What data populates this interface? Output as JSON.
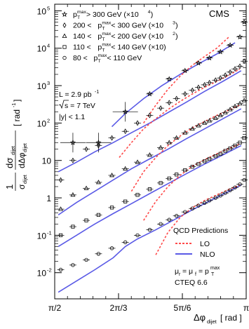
{
  "chart_data": {
    "type": "scatter",
    "experiment_label": "CMS",
    "ylabel": "1/σ_dijet dσ_dijet/dΔφ_dijet [rad⁻¹]",
    "xlabel": "Δφ_dijet [rad]",
    "ylabel_parts": {
      "main": "dσ",
      "main_sub": "dijet",
      "denom": "dΔφ",
      "denom_sub": "dijet",
      "pre": "1",
      "pre_den": "σ",
      "pre_den_sub": "dijet",
      "unit": "[ rad",
      "unit_sup": "-1",
      "unit_close": "]"
    },
    "xlabel_parts": {
      "main": "Δφ",
      "sub": "dijet",
      "unit": "[ rad ]"
    },
    "x_ticks": [
      {
        "value": 1.5708,
        "label": "π/2"
      },
      {
        "value": 2.0944,
        "label": "2π/3"
      },
      {
        "value": 2.618,
        "label": "5π/6"
      },
      {
        "value": 3.1416,
        "label": "π"
      }
    ],
    "y_ticks": [
      {
        "value": 0.01,
        "base": "10",
        "exp": "-2"
      },
      {
        "value": 0.1,
        "base": "10",
        "exp": "-1"
      },
      {
        "value": 1,
        "base": "1",
        "exp": ""
      },
      {
        "value": 10,
        "base": "10",
        "exp": ""
      },
      {
        "value": 100,
        "base": "10",
        "exp": "2"
      },
      {
        "value": 1000,
        "base": "10",
        "exp": "3"
      },
      {
        "value": 10000,
        "base": "10",
        "exp": "4"
      },
      {
        "value": 100000,
        "base": "10",
        "exp": "5"
      }
    ],
    "xlim": [
      1.5708,
      3.1416
    ],
    "ylim": [
      0.002,
      150000
    ],
    "y_scale": "log",
    "legend": [
      {
        "marker": "star",
        "label": "p_T^max > 300 GeV (×10^4)",
        "parts": [
          "p",
          "T",
          "max",
          " > 300 GeV (×10",
          "4",
          ")"
        ],
        "prefix": ""
      },
      {
        "marker": "diamond",
        "label": "200 < p_T^max < 300 GeV (×10^3)",
        "parts": [
          "p",
          "T",
          "max",
          " < 300 GeV (×10",
          "3",
          ")"
        ],
        "prefix": "200 < "
      },
      {
        "marker": "triangle",
        "label": "140 < p_T^max < 200 GeV (×10^2)",
        "parts": [
          "p",
          "T",
          "max",
          " < 200 GeV (×10",
          "2",
          ")"
        ],
        "prefix": "140 < "
      },
      {
        "marker": "square",
        "label": "110 < p_T^max < 140 GeV (×10)",
        "parts": [
          "p",
          "T",
          "max",
          " < 140 GeV (×10)",
          "",
          ""
        ],
        "prefix": "110 < "
      },
      {
        "marker": "circle",
        "label": "80 < p_T^max < 110 GeV",
        "parts": [
          "p",
          "T",
          "max",
          " < 110 GeV",
          "",
          ""
        ],
        "prefix": "80 < "
      }
    ],
    "info": {
      "lumi": "L = 2.9 pb",
      "lumi_sup": "-1",
      "sqrt_s": "s = 7 TeV",
      "rapidity": "|y| < 1.1"
    },
    "predictions": {
      "title": "QCD Predictions",
      "lo_label": "LO",
      "nlo_label": "NLO",
      "scale_label": "μ",
      "scale_text": "μ_r = μ_f = p_T^max",
      "pdf": "CTEQ 6.6"
    },
    "colors": {
      "lo": "#ff4a4a",
      "nlo": "#5a5ae6",
      "data": "#000000"
    },
    "x_bins": [
      1.62,
      1.72,
      1.83,
      1.93,
      2.04,
      2.15,
      2.25,
      2.35,
      2.44,
      2.51,
      2.57,
      2.64,
      2.7,
      2.75,
      2.8,
      2.84,
      2.89,
      2.93,
      2.97,
      3.01,
      3.05,
      3.09,
      3.125
    ],
    "series": [
      {
        "name": "p_T^max > 300 GeV (×10^4)",
        "marker": "star",
        "x": [
          1.72,
          1.93,
          2.15,
          2.35,
          2.51,
          2.64,
          2.75,
          2.84,
          2.93,
          3.01,
          3.09,
          3.125
        ],
        "y": [
          30,
          30,
          200,
          600,
          1500,
          2500,
          4000,
          5500,
          8000,
          12000,
          20000,
          50000
        ],
        "nlo_x": [
          2.04,
          2.15,
          2.3,
          2.45,
          2.6,
          2.75,
          2.9,
          3.05
        ],
        "nlo_y": [
          80,
          180,
          450,
          1000,
          2000,
          3800,
          7000,
          14000
        ],
        "lo_x": [
          2.3,
          2.4,
          2.5,
          2.6,
          2.7,
          2.8,
          2.9,
          3.0
        ],
        "lo_y": [
          100,
          300,
          800,
          1800,
          3500,
          6000,
          10000,
          20000
        ]
      },
      {
        "name": "200 < p_T^max < 300 GeV (×10^3)",
        "marker": "diamond",
        "x": [
          1.62,
          1.72,
          1.83,
          1.93,
          2.04,
          2.15,
          2.25,
          2.35,
          2.44,
          2.51,
          2.57,
          2.64,
          2.7,
          2.75,
          2.8,
          2.84,
          2.89,
          2.93,
          2.97,
          3.01,
          3.05,
          3.09,
          3.125
        ],
        "y": [
          3,
          10,
          20,
          25,
          40,
          60,
          100,
          160,
          250,
          350,
          450,
          600,
          750,
          900,
          1050,
          1200,
          1400,
          1600,
          1900,
          2300,
          2800,
          3300,
          4500
        ],
        "nlo_x": [
          1.6,
          1.75,
          1.9,
          2.05,
          2.2,
          2.35,
          2.5,
          2.65,
          2.8,
          2.95,
          3.1
        ],
        "nlo_y": [
          5,
          9,
          17,
          30,
          55,
          100,
          190,
          360,
          700,
          1300,
          2500
        ],
        "lo_x": [
          2.1,
          2.2,
          2.3,
          2.4,
          2.5,
          2.6,
          2.7,
          2.8,
          2.9,
          3.0,
          3.09
        ],
        "lo_y": [
          12,
          30,
          70,
          130,
          230,
          380,
          600,
          900,
          1300,
          1900,
          2800
        ]
      },
      {
        "name": "140 < p_T^max < 200 GeV (×10^2)",
        "marker": "triangle",
        "x": [
          1.62,
          1.72,
          1.83,
          1.93,
          2.04,
          2.15,
          2.25,
          2.35,
          2.44,
          2.51,
          2.57,
          2.64,
          2.7,
          2.75,
          2.8,
          2.84,
          2.89,
          2.93,
          2.97,
          3.01,
          3.05,
          3.09,
          3.125
        ],
        "y": [
          0.5,
          1.2,
          1.8,
          2.6,
          4,
          6,
          9,
          14,
          22,
          30,
          40,
          55,
          70,
          85,
          100,
          115,
          135,
          160,
          190,
          230,
          280,
          330,
          400
        ],
        "nlo_x": [
          1.6,
          1.75,
          1.9,
          2.05,
          2.2,
          2.35,
          2.5,
          2.65,
          2.8,
          2.95,
          3.1
        ],
        "nlo_y": [
          0.35,
          0.75,
          1.5,
          3,
          6,
          11,
          20,
          38,
          70,
          130,
          240
        ],
        "lo_x": [
          2.2,
          2.3,
          2.4,
          2.5,
          2.6,
          2.7,
          2.8,
          2.9,
          3.0,
          3.09
        ],
        "lo_y": [
          1.5,
          5,
          12,
          25,
          45,
          75,
          110,
          160,
          220,
          300
        ]
      },
      {
        "name": "110 < p_T^max < 140 GeV (×10)",
        "marker": "square",
        "x": [
          1.62,
          1.72,
          1.83,
          1.93,
          2.04,
          2.15,
          2.25,
          2.35,
          2.44,
          2.51,
          2.57,
          2.64,
          2.7,
          2.75,
          2.8,
          2.84,
          2.89,
          2.93,
          2.97,
          3.01,
          3.05,
          3.09,
          3.125
        ],
        "y": [
          0.1,
          0.17,
          0.25,
          0.35,
          0.55,
          0.8,
          1.2,
          1.7,
          2.5,
          3.3,
          4.2,
          5.5,
          6.8,
          8,
          9.5,
          11,
          13,
          15,
          18,
          21,
          25,
          30,
          40
        ],
        "nlo_x": [
          1.6,
          1.75,
          1.9,
          2.05,
          2.2,
          2.35,
          2.5,
          2.65,
          2.8,
          2.95,
          3.1
        ],
        "nlo_y": [
          0.05,
          0.1,
          0.2,
          0.38,
          0.7,
          1.3,
          2.4,
          4.4,
          8,
          14,
          25
        ],
        "lo_x": [
          2.3,
          2.4,
          2.5,
          2.6,
          2.7,
          2.8,
          2.9,
          3.0,
          3.09
        ],
        "lo_y": [
          0.25,
          0.8,
          2,
          4,
          7,
          10.5,
          15,
          21,
          28
        ]
      },
      {
        "name": "80 < p_T^max < 110 GeV",
        "marker": "circle",
        "x": [
          1.62,
          1.72,
          1.83,
          1.93,
          2.04,
          2.15,
          2.25,
          2.35,
          2.44,
          2.51,
          2.57,
          2.64,
          2.7,
          2.75,
          2.8,
          2.84,
          2.89,
          2.93,
          2.97,
          3.01,
          3.05,
          3.09,
          3.125
        ],
        "y": [
          0.012,
          0.016,
          0.022,
          0.032,
          0.045,
          0.065,
          0.1,
          0.14,
          0.2,
          0.26,
          0.33,
          0.42,
          0.52,
          0.62,
          0.73,
          0.85,
          1.0,
          1.15,
          1.35,
          1.6,
          1.9,
          2.3,
          3
        ],
        "nlo_x": [
          1.6,
          1.75,
          1.9,
          2.05,
          2.15,
          2.25,
          2.4,
          2.55,
          2.7,
          2.85,
          3.0,
          3.1
        ],
        "nlo_y": [
          0.003,
          0.006,
          0.012,
          0.025,
          0.05,
          0.08,
          0.14,
          0.26,
          0.48,
          0.85,
          1.5,
          2.2
        ],
        "lo_x": [
          2.4,
          2.5,
          2.6,
          2.7,
          2.8,
          2.9,
          3.0,
          3.09
        ],
        "lo_y": [
          0.03,
          0.12,
          0.3,
          0.55,
          0.85,
          1.2,
          1.7,
          2.2
        ]
      }
    ],
    "grid": false,
    "legend_position": "top-left"
  }
}
